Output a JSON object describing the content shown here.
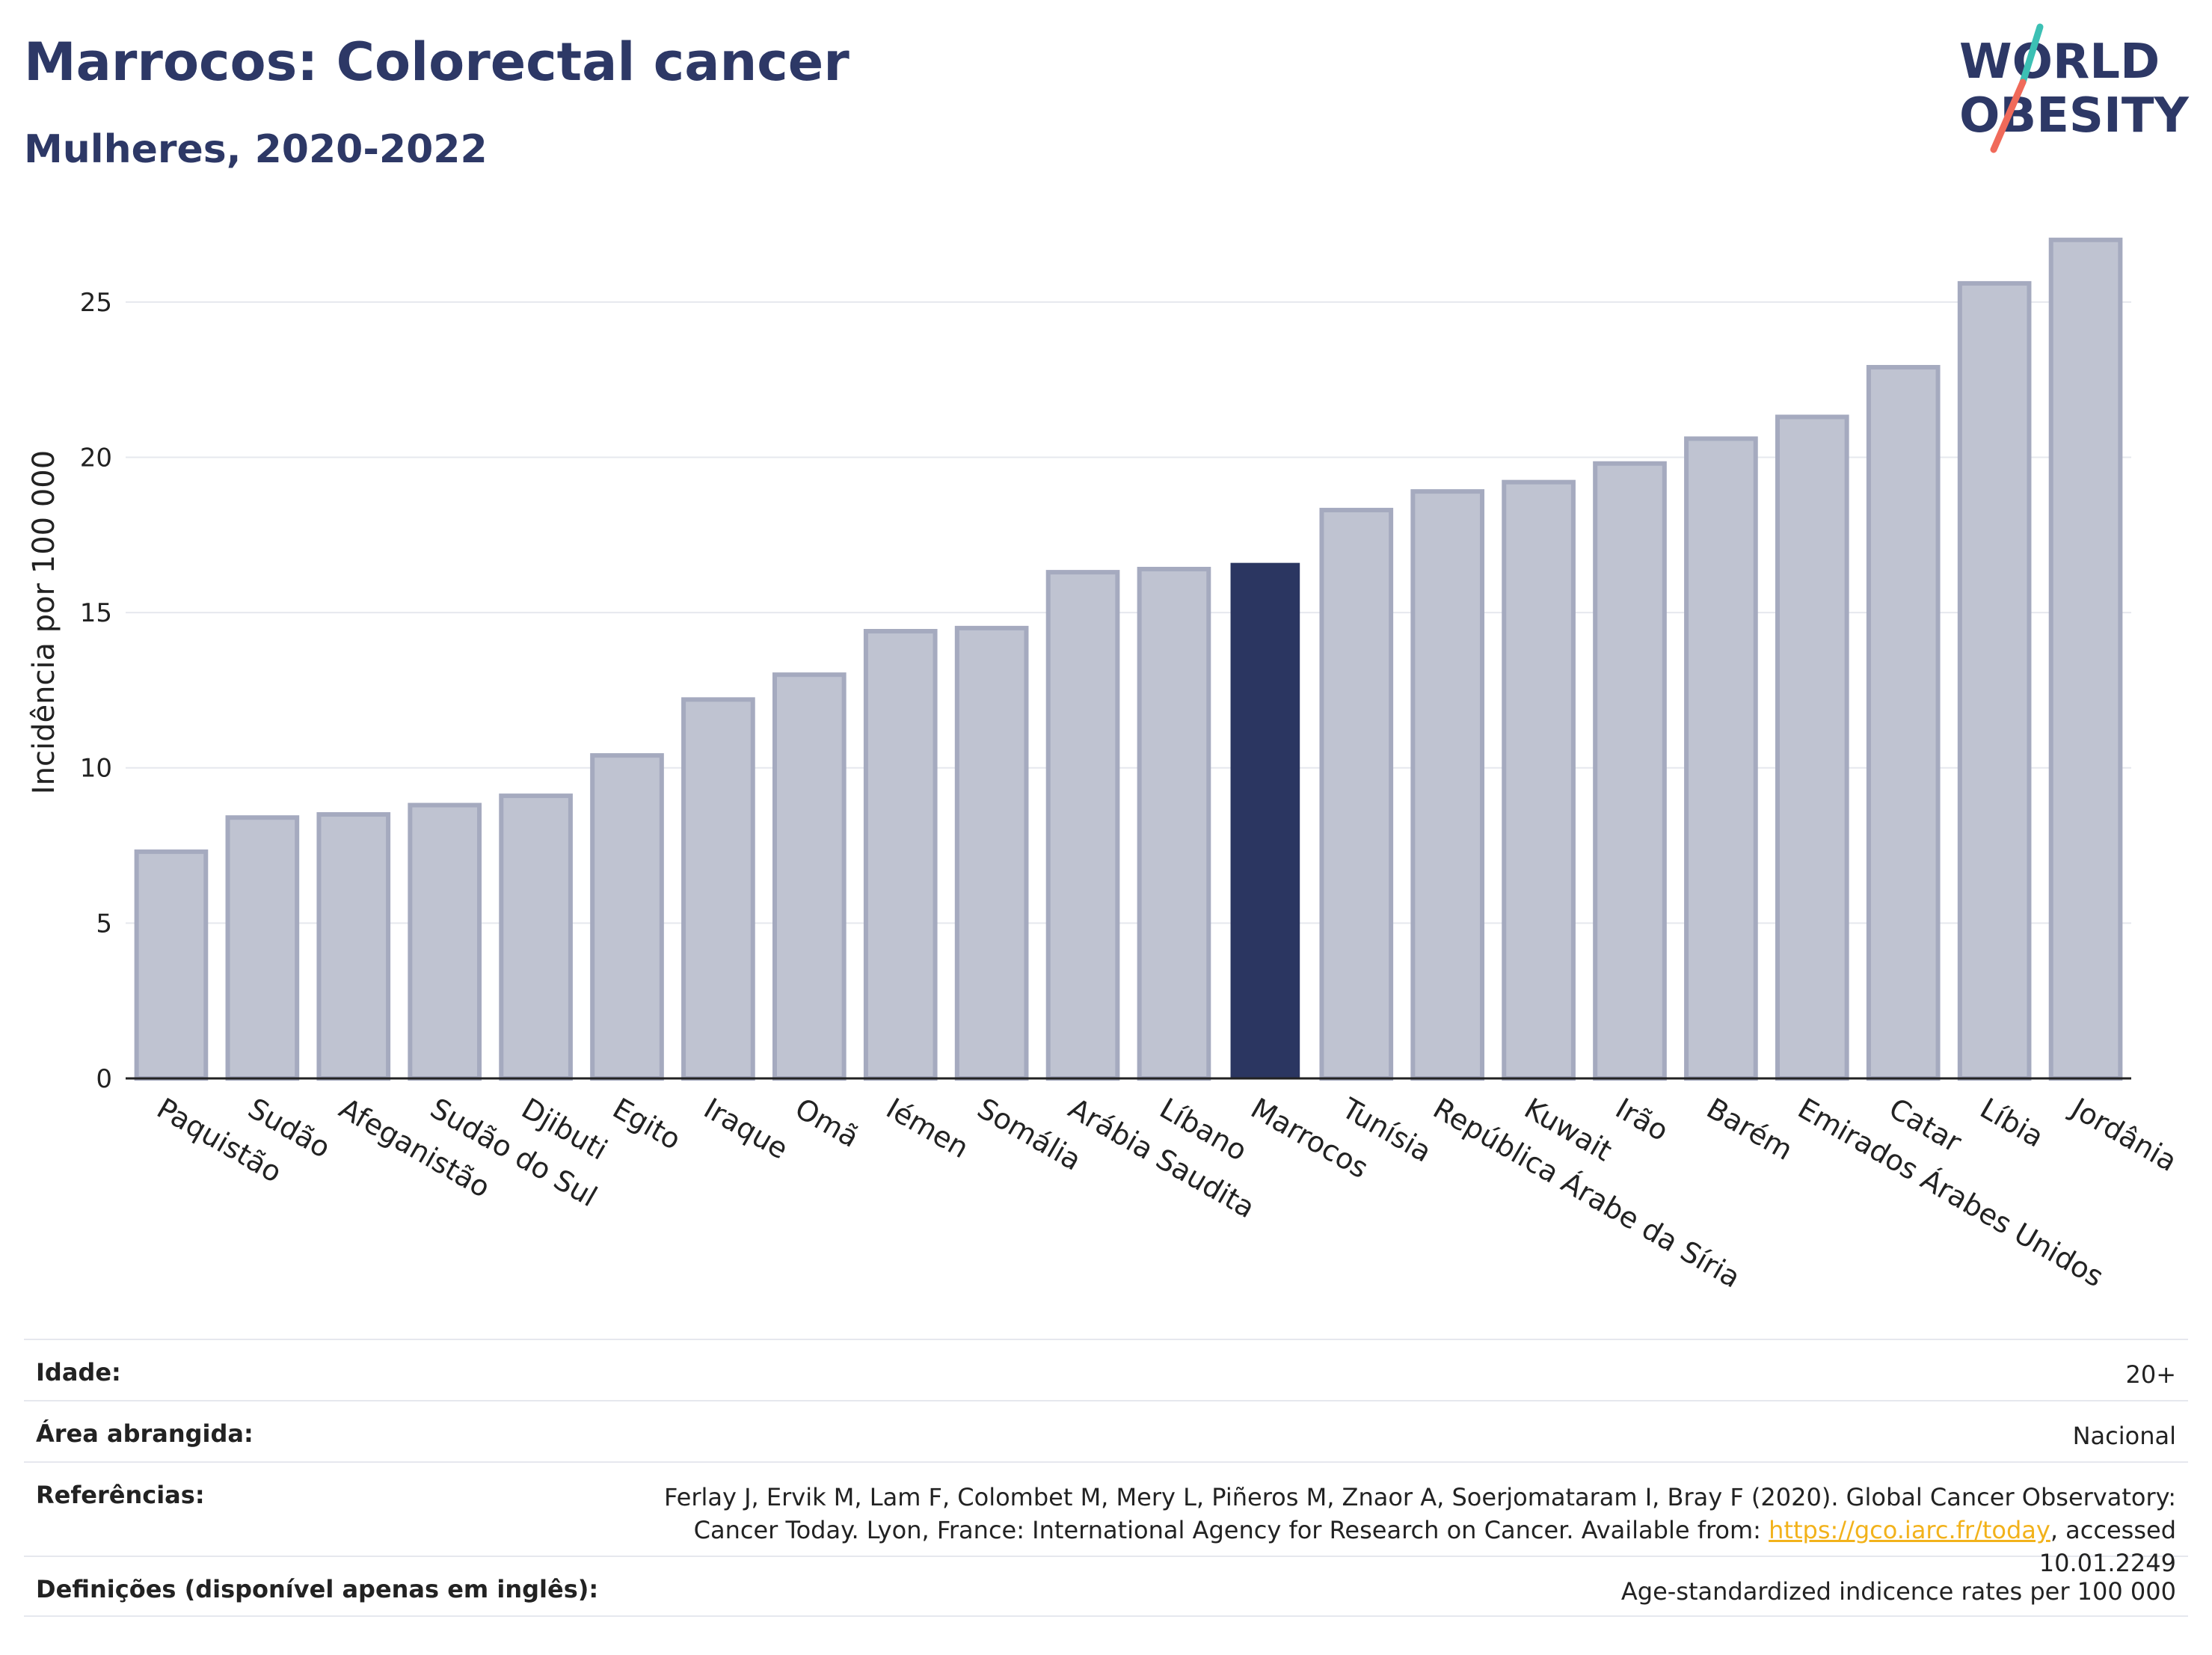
{
  "header": {
    "title": "Marrocos: Colorectal cancer",
    "subtitle": "Mulheres, 2020-2022"
  },
  "logo": {
    "line1": "WORLD",
    "line2": "OBESITY",
    "accent_colors": [
      "#3cc0b4",
      "#f06a5a"
    ]
  },
  "colors": {
    "bar": "#bfc3d1",
    "bar_border": "#a5aabf",
    "highlight": "#2b3661",
    "grid": "#e6e8ee"
  },
  "chart_data": {
    "type": "bar",
    "title": "Marrocos: Colorectal cancer",
    "subtitle": "Mulheres, 2020-2022",
    "xlabel": "",
    "ylabel": "Incidência por 100 000",
    "ylim": [
      0,
      27.5
    ],
    "yticks": [
      0,
      5,
      10,
      15,
      20,
      25
    ],
    "grid": true,
    "highlight": "Marrocos",
    "categories": [
      "Paquistão",
      "Sudão",
      "Afeganistão",
      "Sudão do Sul",
      "Djibuti",
      "Egito",
      "Iraque",
      "Omã",
      "Iémen",
      "Somália",
      "Arábia Saudita",
      "Líbano",
      "Marrocos",
      "Tunísia",
      "República Árabe da Síria",
      "Kuwait",
      "Irão",
      "Barém",
      "Emirados Árabes Unidos",
      "Catar",
      "Líbia",
      "Jordânia"
    ],
    "values": [
      7.3,
      8.4,
      8.5,
      8.8,
      9.1,
      10.4,
      12.2,
      13.0,
      14.4,
      14.5,
      16.3,
      16.4,
      16.6,
      18.3,
      18.9,
      19.2,
      19.8,
      20.6,
      21.3,
      22.9,
      25.6,
      27.0
    ]
  },
  "info": {
    "age_label": "Idade:",
    "age_value": "20+",
    "area_label": "Área abrangida:",
    "area_value": "Nacional",
    "refs_label": "Referências:",
    "refs_text_1": "Ferlay J, Ervik M, Lam F, Colombet M, Mery L, Piñeros M, Znaor A, Soerjomataram I, Bray F (2020). Global Cancer Observatory: Cancer Today. Lyon, France: International Agency for Research on Cancer. Available from: ",
    "refs_link": "https://gco.iarc.fr/today",
    "refs_text_2": ", accessed 10.01.2249",
    "defs_label": "Definições (disponível apenas em inglês):",
    "defs_value": "Age-standardized indicence rates per 100 000"
  }
}
